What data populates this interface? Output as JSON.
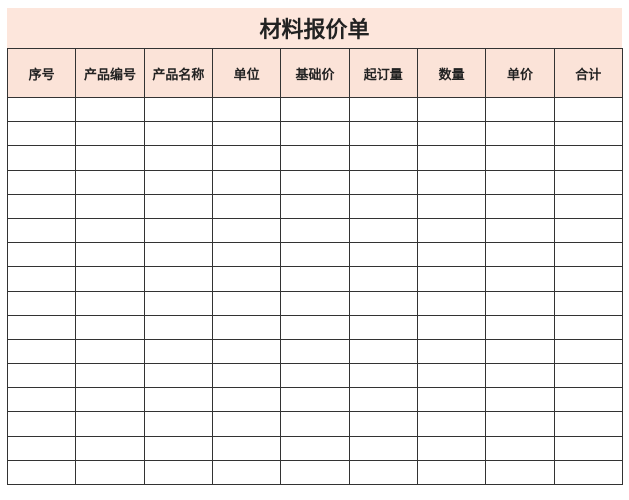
{
  "title": "材料报价单",
  "columns": [
    "序号",
    "产品编号",
    "产品名称",
    "单位",
    "基础价",
    "起订量",
    "数量",
    "单价",
    "合计"
  ],
  "row_count": 16,
  "colors": {
    "header_bg": "#fbe3d8",
    "title_bg": "#fde6dc",
    "border": "#333333"
  }
}
